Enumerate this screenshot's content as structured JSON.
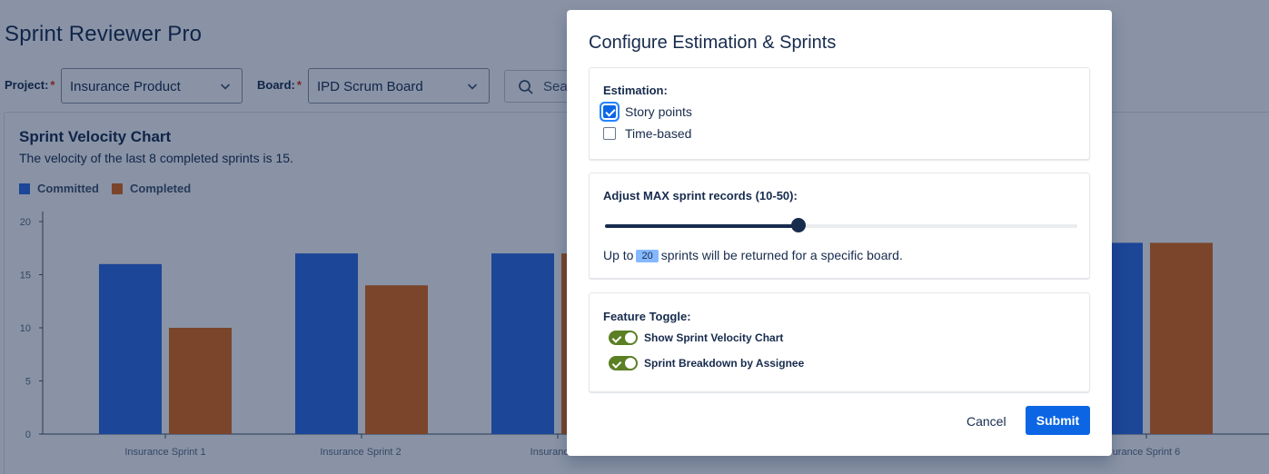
{
  "app": {
    "title": "Sprint Reviewer Pro",
    "filters": {
      "project_label": "Project:",
      "project_value": "Insurance Product",
      "board_label": "Board:",
      "board_value": "IPD Scrum Board",
      "required_marker": "*",
      "search_text": "Sear"
    }
  },
  "chart_panel": {
    "title": "Sprint Velocity Chart",
    "subtitle": "The velocity of the last 8 completed sprints is 15."
  },
  "chart_data": {
    "type": "bar",
    "categories": [
      "Insurance Sprint 1",
      "Insurance Sprint 2",
      "Insurance S",
      "",
      "",
      "Insurance Sprint 6"
    ],
    "category_labels_visible": [
      "Insurance Sprint 1",
      "Insurance Sprint 2",
      "Insurance S",
      "urance Sprint 6"
    ],
    "series": [
      {
        "name": "Committed",
        "color": "#2f6ce5",
        "values": [
          16,
          17,
          17,
          null,
          null,
          18
        ]
      },
      {
        "name": "Completed",
        "color": "#e26a16",
        "values": [
          10,
          14,
          17,
          null,
          null,
          18
        ]
      }
    ],
    "yticks": [
      "0",
      "5",
      "10",
      "15",
      "20"
    ],
    "ylim": [
      0,
      20
    ],
    "legend_position": "top-left",
    "grid": false
  },
  "modal": {
    "title": "Configure Estimation & Sprints",
    "estimation": {
      "label": "Estimation:",
      "options": [
        {
          "label": "Story points",
          "checked": true
        },
        {
          "label": "Time-based",
          "checked": false
        }
      ]
    },
    "sprint_records": {
      "label": "Adjust MAX sprint records (10-50):",
      "min": 10,
      "max": 50,
      "value": 20,
      "value_text": "20",
      "text_before": "Up to",
      "text_after": "sprints will be returned for a specific board."
    },
    "feature_toggle": {
      "label": "Feature Toggle:",
      "toggles": [
        {
          "label": "Show Sprint Velocity Chart",
          "on": true
        },
        {
          "label": "Sprint Breakdown by Assignee",
          "on": true
        }
      ]
    },
    "cancel_label": "Cancel",
    "submit_label": "Submit"
  }
}
